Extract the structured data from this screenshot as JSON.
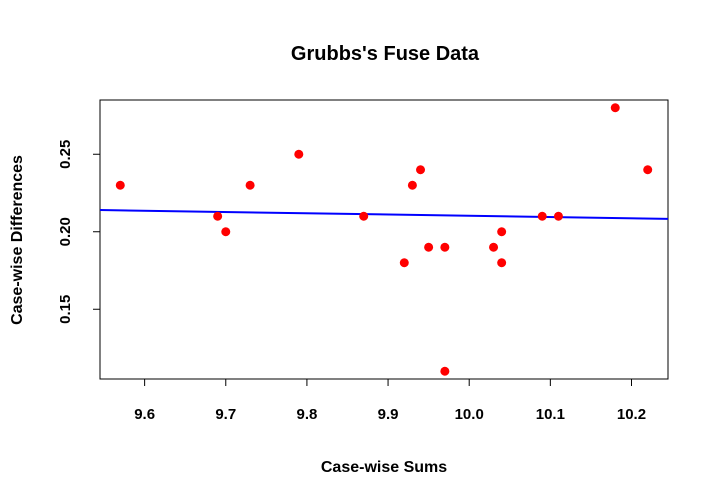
{
  "chart_data": {
    "type": "scatter",
    "title": "Grubbs's Fuse Data",
    "xlabel": "Case-wise Sums",
    "ylabel": "Case-wise Differences",
    "xlim": [
      9.545,
      10.245
    ],
    "ylim": [
      0.105,
      0.285
    ],
    "x_ticks": [
      9.6,
      9.7,
      9.8,
      9.9,
      10.0,
      10.1,
      10.2
    ],
    "x_tick_labels": [
      "9.6",
      "9.7",
      "9.8",
      "9.9",
      "10.0",
      "10.1",
      "10.2"
    ],
    "y_ticks": [
      0.15,
      0.2,
      0.25
    ],
    "y_tick_labels": [
      "0.15",
      "0.20",
      "0.25"
    ],
    "grid": false,
    "point_color": "#ff0000",
    "line_color": "#0000ff",
    "points": [
      {
        "x": 9.57,
        "y": 0.23
      },
      {
        "x": 9.69,
        "y": 0.21
      },
      {
        "x": 9.7,
        "y": 0.2
      },
      {
        "x": 9.73,
        "y": 0.23
      },
      {
        "x": 9.79,
        "y": 0.25
      },
      {
        "x": 9.87,
        "y": 0.21
      },
      {
        "x": 9.92,
        "y": 0.18
      },
      {
        "x": 9.93,
        "y": 0.23
      },
      {
        "x": 9.94,
        "y": 0.24
      },
      {
        "x": 9.95,
        "y": 0.19
      },
      {
        "x": 9.97,
        "y": 0.19
      },
      {
        "x": 9.97,
        "y": 0.11
      },
      {
        "x": 10.03,
        "y": 0.19
      },
      {
        "x": 10.04,
        "y": 0.2
      },
      {
        "x": 10.04,
        "y": 0.18
      },
      {
        "x": 10.09,
        "y": 0.21
      },
      {
        "x": 10.11,
        "y": 0.21
      },
      {
        "x": 10.18,
        "y": 0.28
      },
      {
        "x": 10.22,
        "y": 0.24
      }
    ],
    "fit_line": [
      {
        "x": 9.545,
        "y": 0.214
      },
      {
        "x": 10.245,
        "y": 0.2083
      }
    ]
  }
}
